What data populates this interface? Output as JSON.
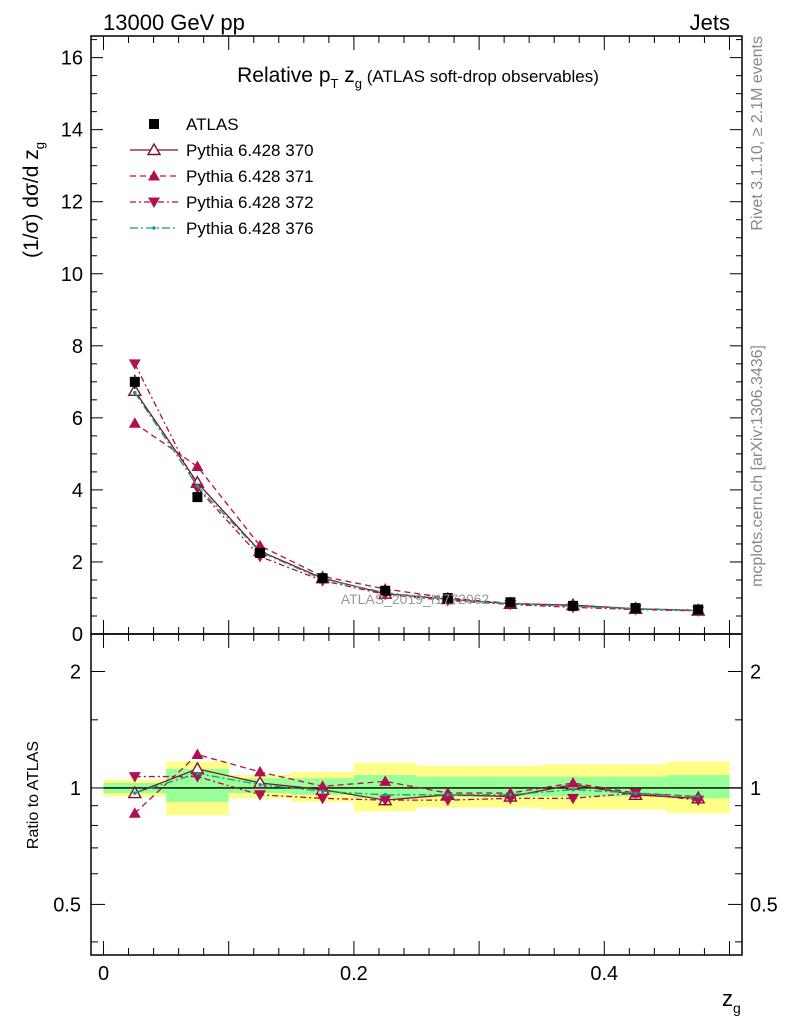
{
  "header": {
    "left": "13000 GeV pp",
    "right": "Jets"
  },
  "side_labels": {
    "rivet": "Rivet 3.1.10, ≥ 2.1M events",
    "mcplots": "mcplots.cern.ch [arXiv:1306.3436]"
  },
  "watermark": "ATLAS_2019_I1772062",
  "chart_data": {
    "type": "line",
    "title": "Relative pT zg (ATLAS soft-drop observables)",
    "title_parts": {
      "main": "Relative p",
      "sub1": "T",
      "mid": " z",
      "sub2": "g",
      "rest": " (ATLAS soft-drop observables)"
    },
    "ylabel": "(1/σ) dσ/d z",
    "ylabel_sub": "g",
    "xlabel": "z",
    "xlabel_sub": "g",
    "ratio_ylabel": "Ratio to ATLAS",
    "x": [
      0.025,
      0.075,
      0.125,
      0.175,
      0.225,
      0.275,
      0.325,
      0.375,
      0.425,
      0.475
    ],
    "xlim": [
      -0.01,
      0.51
    ],
    "ylim": [
      0,
      16.6
    ],
    "ratio_ylim": [
      0.37,
      2.5
    ],
    "ratio_log": true,
    "x_ticks": [
      "0",
      "0.2",
      "0.4"
    ],
    "y_ticks": [
      "0",
      "2",
      "4",
      "6",
      "8",
      "10",
      "12",
      "14",
      "16"
    ],
    "ratio_ticks": [
      "0.5",
      "1",
      "2"
    ],
    "data": {
      "name": "ATLAS",
      "values": [
        7.0,
        3.8,
        2.25,
        1.55,
        1.2,
        1.0,
        0.88,
        0.78,
        0.72,
        0.68
      ],
      "errors": [
        0.2,
        0.1,
        0.08,
        0.05,
        0.04,
        0.03,
        0.03,
        0.03,
        0.03,
        0.03
      ]
    },
    "bands": {
      "bins": [
        [
          0.0,
          0.05
        ],
        [
          0.05,
          0.1
        ],
        [
          0.1,
          0.15
        ],
        [
          0.15,
          0.2
        ],
        [
          0.2,
          0.25
        ],
        [
          0.25,
          0.3
        ],
        [
          0.3,
          0.35
        ],
        [
          0.35,
          0.4
        ],
        [
          0.4,
          0.45
        ],
        [
          0.45,
          0.5
        ]
      ],
      "inner": [
        [
          0.97,
          1.03
        ],
        [
          0.92,
          1.12
        ],
        [
          0.97,
          1.06
        ],
        [
          0.96,
          1.06
        ],
        [
          0.94,
          1.08
        ],
        [
          0.95,
          1.07
        ],
        [
          0.95,
          1.07
        ],
        [
          0.95,
          1.07
        ],
        [
          0.95,
          1.07
        ],
        [
          0.94,
          1.08
        ]
      ],
      "outer": [
        [
          0.95,
          1.05
        ],
        [
          0.85,
          1.17
        ],
        [
          0.94,
          1.08
        ],
        [
          0.92,
          1.1
        ],
        [
          0.87,
          1.16
        ],
        [
          0.89,
          1.14
        ],
        [
          0.89,
          1.14
        ],
        [
          0.88,
          1.15
        ],
        [
          0.88,
          1.15
        ],
        [
          0.86,
          1.17
        ]
      ],
      "inner_color": "#99ff99",
      "outer_color": "#ffff88"
    },
    "series": [
      {
        "name": "Pythia 6.428 370",
        "style": "solid",
        "marker": "triangle-open",
        "color": "#7a1523",
        "values": [
          6.75,
          4.2,
          2.3,
          1.55,
          1.12,
          0.97,
          0.84,
          0.8,
          0.7,
          0.65
        ],
        "ratio": [
          0.97,
          1.12,
          1.03,
          0.99,
          0.93,
          0.96,
          0.95,
          1.02,
          0.96,
          0.94
        ]
      },
      {
        "name": "Pythia 6.428 371",
        "style": "dashed",
        "marker": "triangle-up",
        "color": "#b01050",
        "values": [
          5.85,
          4.65,
          2.45,
          1.6,
          1.25,
          1.0,
          0.85,
          0.8,
          0.7,
          0.66
        ],
        "ratio": [
          0.86,
          1.22,
          1.1,
          1.01,
          1.04,
          0.97,
          0.97,
          1.03,
          0.97,
          0.95
        ]
      },
      {
        "name": "Pythia 6.428 372",
        "style": "dashdot",
        "marker": "triangle-down",
        "color": "#b01050",
        "values": [
          7.5,
          4.05,
          2.15,
          1.48,
          1.1,
          0.93,
          0.82,
          0.74,
          0.68,
          0.64
        ],
        "ratio": [
          1.07,
          1.07,
          0.96,
          0.94,
          0.93,
          0.93,
          0.94,
          0.94,
          0.97,
          0.93
        ]
      },
      {
        "name": "Pythia 6.428 376",
        "style": "dashdot-long",
        "marker": "dot",
        "color": "#10a080",
        "values": [
          6.7,
          4.1,
          2.28,
          1.52,
          1.15,
          0.96,
          0.84,
          0.77,
          0.7,
          0.65
        ],
        "ratio": [
          0.97,
          1.09,
          1.02,
          0.98,
          0.96,
          0.96,
          0.96,
          0.99,
          0.97,
          0.95
        ]
      }
    ]
  }
}
